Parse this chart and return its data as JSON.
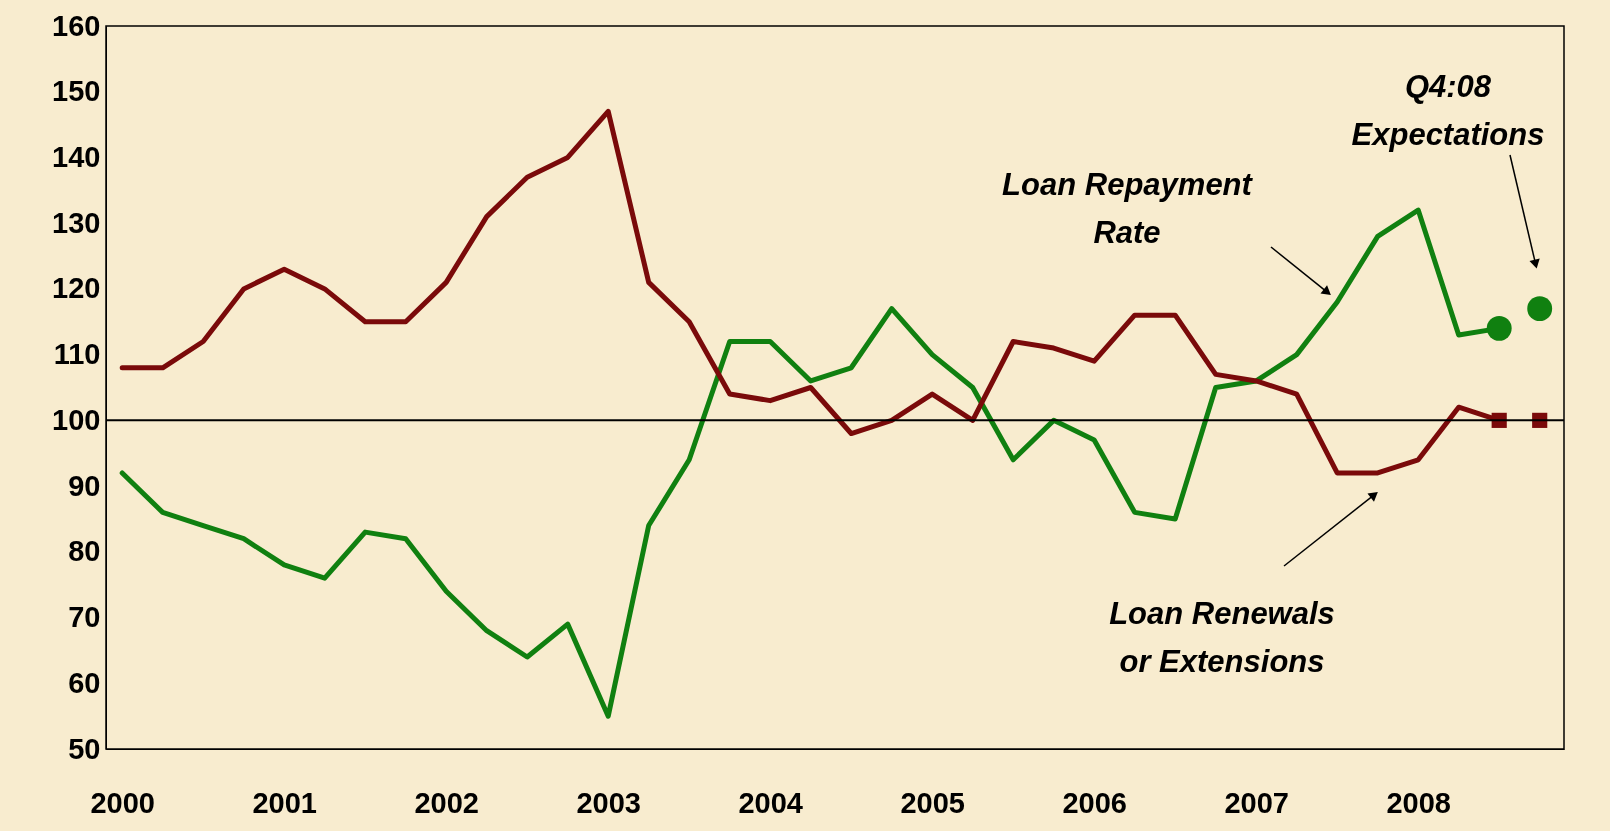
{
  "chart_data": {
    "type": "line",
    "xlim": [
      1999.9,
      2008.9
    ],
    "xticks": [
      2000,
      2001,
      2002,
      2003,
      2004,
      2005,
      2006,
      2007,
      2008
    ],
    "ylim": [
      50,
      160
    ],
    "yticks": [
      50,
      60,
      70,
      80,
      90,
      100,
      110,
      120,
      130,
      140,
      150,
      160
    ],
    "grid": false,
    "x": [
      2000,
      2000.25,
      2000.5,
      2000.75,
      2001,
      2001.25,
      2001.5,
      2001.75,
      2002,
      2002.25,
      2002.5,
      2002.75,
      2003,
      2003.25,
      2003.5,
      2003.75,
      2004,
      2004.25,
      2004.5,
      2004.75,
      2005,
      2005.25,
      2005.5,
      2005.75,
      2006,
      2006.25,
      2006.5,
      2006.75,
      2007,
      2007.25,
      2007.5,
      2007.75,
      2008,
      2008.25,
      2008.5,
      2008.75
    ],
    "series": [
      {
        "color": "#108010",
        "values": [
          92,
          86,
          84,
          82,
          78,
          76,
          83,
          82,
          74,
          68,
          64,
          69,
          55,
          84,
          94,
          112,
          112,
          106,
          108,
          117,
          110,
          105,
          94,
          100,
          97,
          86,
          85,
          105,
          106,
          110,
          118,
          128,
          132,
          113,
          114,
          null
        ]
      },
      {
        "color": "#7a0a0a",
        "values": [
          108,
          108,
          112,
          120,
          123,
          120,
          115,
          115,
          121,
          131,
          137,
          140,
          147,
          121,
          115,
          104,
          103,
          105,
          98,
          100,
          104,
          100,
          112,
          111,
          109,
          116,
          116,
          107,
          106,
          104,
          92,
          92,
          94,
          102,
          100,
          null
        ]
      },
      {
        "type": "scatter",
        "color": "#108010",
        "marker": "circle",
        "values": [
          null,
          null,
          null,
          null,
          null,
          null,
          null,
          null,
          null,
          null,
          null,
          null,
          null,
          null,
          null,
          null,
          null,
          null,
          null,
          null,
          null,
          null,
          null,
          null,
          null,
          null,
          null,
          null,
          null,
          null,
          null,
          null,
          null,
          null,
          114,
          117
        ]
      },
      {
        "type": "scatter",
        "color": "#7a0a0a",
        "marker": "square",
        "values": [
          null,
          null,
          null,
          null,
          null,
          null,
          null,
          null,
          null,
          null,
          null,
          null,
          null,
          null,
          null,
          null,
          null,
          null,
          null,
          null,
          null,
          null,
          null,
          null,
          null,
          null,
          null,
          null,
          null,
          null,
          null,
          null,
          null,
          null,
          100,
          100
        ]
      }
    ],
    "ref_lines": [
      {
        "axis": "y",
        "value": 100,
        "color": "#000000"
      }
    ],
    "annotations": [
      "Loan Repayment\nRate",
      "Loan Renewals\nor Extensions",
      "Q4:08\nExpectations"
    ]
  }
}
